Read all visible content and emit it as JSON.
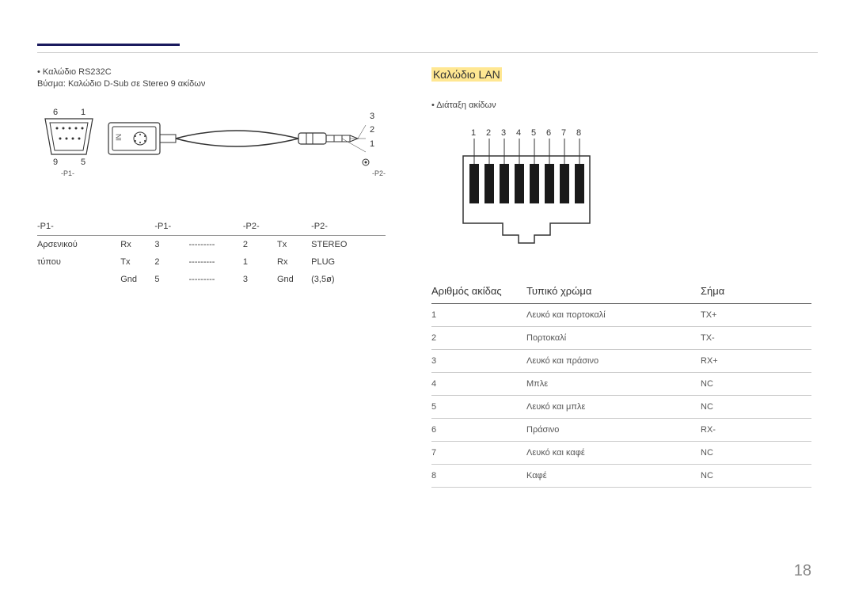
{
  "page_number": "18",
  "left": {
    "bullet": "• Καλώδιο RS232C",
    "subtext": "Βύσμα: Καλώδιο D-Sub σε Stereo 9 ακίδων",
    "labels": {
      "p1": "-P1-",
      "p2": "-P2-"
    },
    "connector_nums": {
      "tl": "6",
      "tr": "1",
      "bl": "9",
      "br": "5",
      "r1": "3",
      "r2": "2",
      "r3": "1",
      "in": "IN"
    },
    "table": {
      "headers": [
        "-P1-",
        "",
        "-P1-",
        "",
        "-P2-",
        "",
        "-P2-"
      ],
      "rows": [
        [
          "Αρσενικού",
          "Rx",
          "3",
          "---------",
          "2",
          "Tx",
          "STEREO"
        ],
        [
          "τύπου",
          "Tx",
          "2",
          "---------",
          "1",
          "Rx",
          "PLUG"
        ],
        [
          "",
          "Gnd",
          "5",
          "---------",
          "3",
          "Gnd",
          "(3,5ø)"
        ]
      ]
    }
  },
  "right": {
    "heading": "Καλώδιο LAN",
    "bullet": "• Διάταξη ακίδων",
    "pin_numbers": [
      "1",
      "2",
      "3",
      "4",
      "5",
      "6",
      "7",
      "8"
    ],
    "table": {
      "headers": [
        "Αριθμός ακίδας",
        "Τυπικό χρώμα",
        "Σήμα"
      ],
      "rows": [
        [
          "1",
          "Λευκό και πορτοκαλί",
          "TX+"
        ],
        [
          "2",
          "Πορτοκαλί",
          "TX-"
        ],
        [
          "3",
          "Λευκό και πράσινο",
          "RX+"
        ],
        [
          "4",
          "Μπλε",
          "NC"
        ],
        [
          "5",
          "Λευκό και μπλε",
          "NC"
        ],
        [
          "6",
          "Πράσινο",
          "RX-"
        ],
        [
          "7",
          "Λευκό και καφέ",
          "NC"
        ],
        [
          "8",
          "Καφέ",
          "NC"
        ]
      ]
    }
  },
  "styling": {
    "page_bg": "#ffffff",
    "accent_bar": "#1a1a5e",
    "highlight": "#ffe792",
    "text_color": "#3a3a3a",
    "border_color": "#cccccc"
  }
}
